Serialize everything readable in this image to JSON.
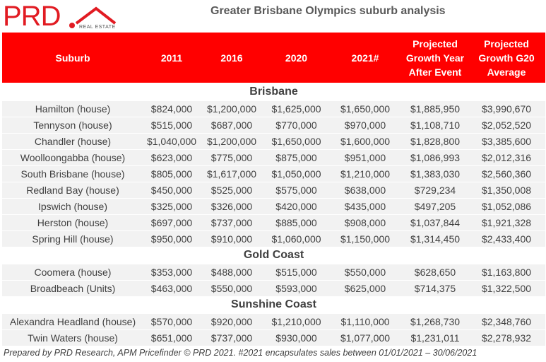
{
  "logo": {
    "text": "PRD",
    "subtext": "REAL ESTATE"
  },
  "title": "Greater Brisbane Olympics suburb analysis",
  "columns": [
    "Suburb",
    "2011",
    "2016",
    "2020",
    "2021#",
    "Projected Growth Year After Event",
    "Projected Growth G20 Average"
  ],
  "sections": [
    {
      "name": "Brisbane",
      "rows": [
        [
          "Hamilton (house)",
          "$824,000",
          "$1,200,000",
          "$1,625,000",
          "$1,650,000",
          "$1,885,950",
          "$3,990,670"
        ],
        [
          "Tennyson (house)",
          "$515,000",
          "$687,000",
          "$770,000",
          "$970,000",
          "$1,108,710",
          "$2,052,520"
        ],
        [
          "Chandler (house)",
          "$1,040,000",
          "$1,200,000",
          "$1,650,000",
          "$1,600,000",
          "$1,828,800",
          "$3,385,600"
        ],
        [
          "Woolloongabba (house)",
          "$623,000",
          "$775,000",
          "$875,000",
          "$951,000",
          "$1,086,993",
          "$2,012,316"
        ],
        [
          "South Brisbane (house)",
          "$805,000",
          "$1,617,000",
          "$1,050,000",
          "$1,210,000",
          "$1,383,030",
          "$2,560,360"
        ],
        [
          "Redland Bay (house)",
          "$450,000",
          "$525,000",
          "$575,000",
          "$638,000",
          "$729,234",
          "$1,350,008"
        ],
        [
          "Ipswich (house)",
          "$325,000",
          "$326,000",
          "$420,000",
          "$435,000",
          "$497,205",
          "$1,052,086"
        ],
        [
          "Herston (house)",
          "$697,000",
          "$737,000",
          "$885,000",
          "$908,000",
          "$1,037,844",
          "$1,921,328"
        ],
        [
          "Spring Hill (house)",
          "$950,000",
          "$910,000",
          "$1,060,000",
          "$1,150,000",
          "$1,314,450",
          "$2,433,400"
        ]
      ]
    },
    {
      "name": "Gold Coast",
      "rows": [
        [
          "Coomera (house)",
          "$353,000",
          "$488,000",
          "$515,000",
          "$550,000",
          "$628,650",
          "$1,163,800"
        ],
        [
          "Broadbeach (Units)",
          "$463,000",
          "$550,000",
          "$593,000",
          "$625,000",
          "$714,375",
          "$1,322,500"
        ]
      ]
    },
    {
      "name": "Sunshine Coast",
      "rows": [
        [
          "Alexandra Headland (house)",
          "$570,000",
          "$920,000",
          "$1,210,000",
          "$1,110,000",
          "$1,268,730",
          "$2,348,760"
        ],
        [
          "Twin Waters (house)",
          "$651,000",
          "$737,000",
          "$930,000",
          "$1,077,000",
          "$1,231,011",
          "$2,278,932"
        ]
      ]
    }
  ],
  "footer": "Prepared by PRD Research, APM Pricefinder © PRD 2021. #2021 encapsulates sales between 01/01/2021 – 30/06/2021",
  "colors": {
    "brand_red": "#e11b22",
    "header_bg": "#ff0000",
    "row_bg": "#f2f2f2",
    "text": "#404040"
  }
}
